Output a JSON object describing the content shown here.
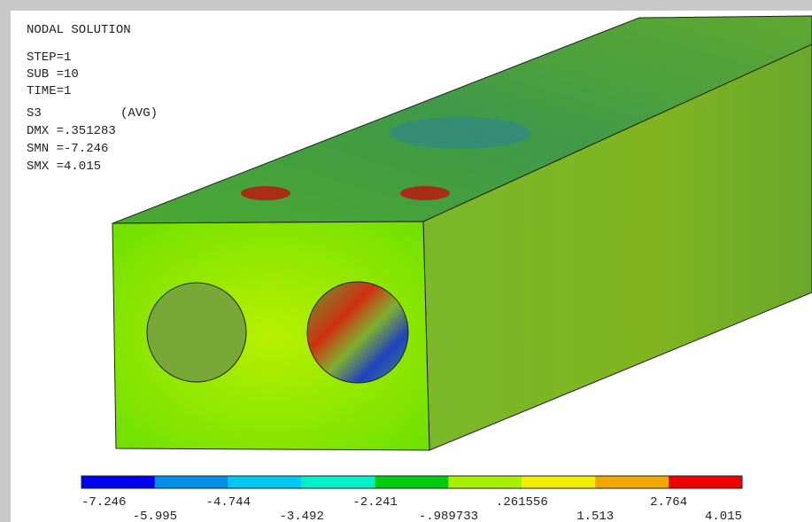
{
  "header": {
    "title": "NODAL SOLUTION",
    "lines": [
      "STEP=1",
      "SUB =10",
      "TIME=1",
      "S3",
      "DMX =.351283",
      "SMN =-7.246",
      "SMX =4.015"
    ],
    "avg": "(AVG)"
  },
  "legend": {
    "colors": [
      "#0000ee",
      "#0090e8",
      "#00c8f0",
      "#00f0c8",
      "#00cc10",
      "#a8f000",
      "#f0f000",
      "#f0a800",
      "#ee0000"
    ],
    "labels": [
      "-7.246",
      "-5.995",
      "-4.744",
      "-3.492",
      "-2.241",
      "-.989733",
      ".261556",
      "1.513",
      "2.764",
      "4.015"
    ]
  }
}
